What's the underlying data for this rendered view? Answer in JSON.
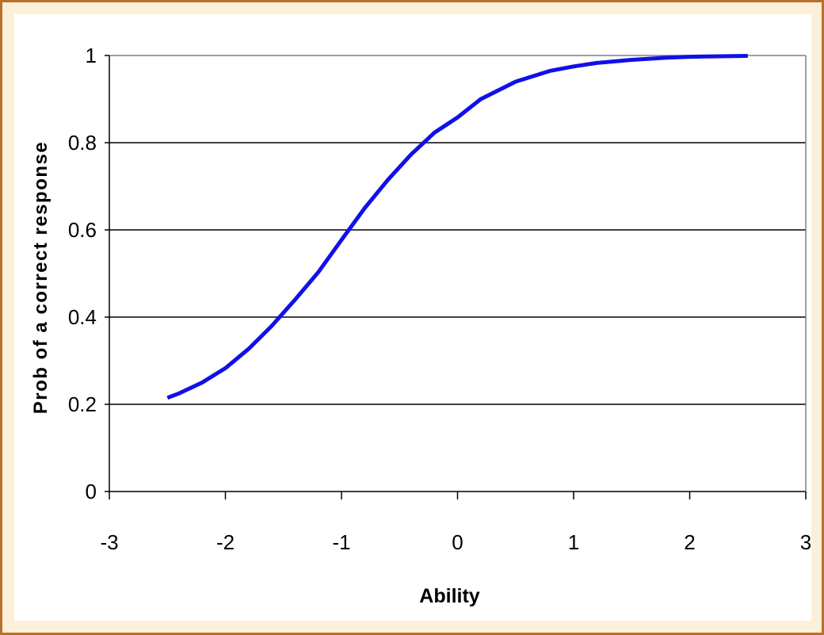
{
  "colors": {
    "frame_border": "#B8712A",
    "frame_fill": "#FDF0D8",
    "plot_background": "#FFFFFF",
    "gridline": "#000000",
    "series_line": "#1010E8"
  },
  "chart_data": {
    "type": "line",
    "title": "",
    "xlabel": "Ability",
    "ylabel": "Prob of a correct response",
    "xlim": [
      -3,
      3
    ],
    "ylim": [
      0,
      1
    ],
    "x_ticks": [
      "-3",
      "-2",
      "-1",
      "0",
      "1",
      "2",
      "3"
    ],
    "y_ticks": [
      "0",
      "0.2",
      "0.4",
      "0.6",
      "0.8",
      "1"
    ],
    "grid": "horizontal",
    "legend": "none",
    "series": [
      {
        "x": [
          -2.5,
          -2.4,
          -2.2,
          -2.0,
          -1.8,
          -1.6,
          -1.4,
          -1.2,
          -1.0,
          -0.8,
          -0.6,
          -0.4,
          -0.2,
          0.0,
          0.2,
          0.5,
          0.8,
          1.0,
          1.2,
          1.5,
          1.8,
          2.0,
          2.2,
          2.5
        ],
        "y": [
          0.215,
          0.225,
          0.25,
          0.283,
          0.327,
          0.38,
          0.44,
          0.503,
          0.577,
          0.65,
          0.715,
          0.773,
          0.823,
          0.858,
          0.9,
          0.94,
          0.965,
          0.975,
          0.983,
          0.99,
          0.995,
          0.997,
          0.998,
          0.999
        ]
      }
    ]
  }
}
